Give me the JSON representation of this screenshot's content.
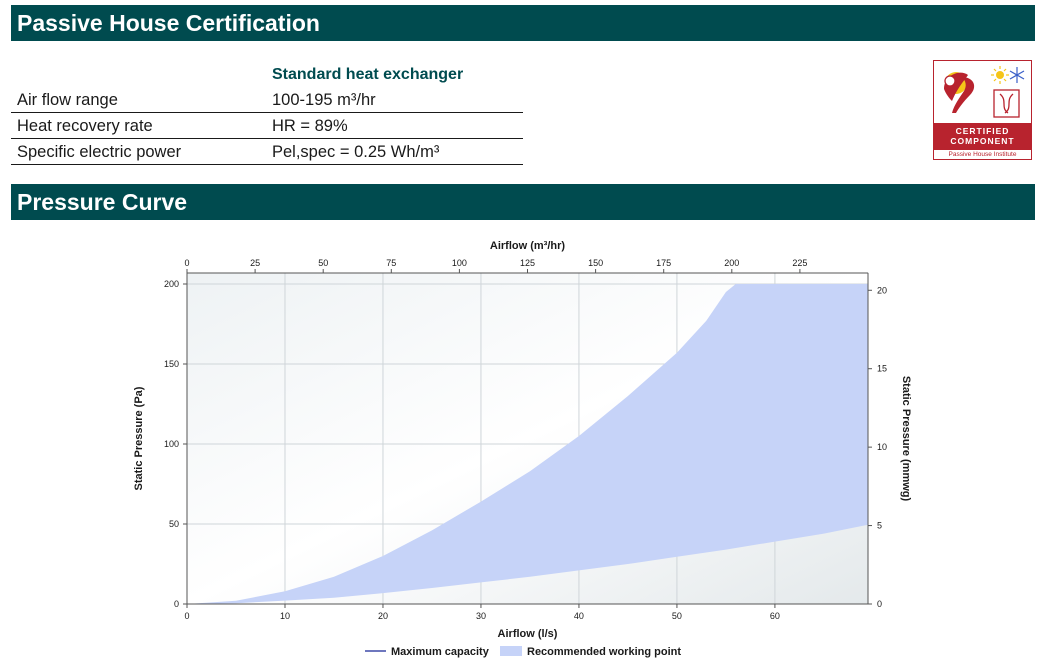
{
  "certification": {
    "title": "Passive House Certification",
    "column_header": "Standard heat exchanger",
    "rows": [
      {
        "label": "Air flow range",
        "value": "100-195 m³/hr"
      },
      {
        "label": "Heat recovery rate",
        "value": "HR = 89%"
      },
      {
        "label": "Specific electric power",
        "value": "Pel,spec = 0.25 Wh/m³"
      }
    ],
    "badge": {
      "line1": "CERTIFIED",
      "line2": "COMPONENT",
      "footer": "Passive House Institute",
      "icons": [
        "passive-house-logo-icon",
        "sun-icon",
        "snowflake-icon",
        "heat-exchanger-icon"
      ],
      "color": "#b8232e"
    }
  },
  "pressure_curve": {
    "title": "Pressure Curve"
  },
  "colors": {
    "header_bar": "#004b4f",
    "accent_text": "#004b4f",
    "area_fill": "#c6d3f8",
    "line": "#3f4aa8"
  },
  "chart_data": {
    "type": "area",
    "xlabel": "Airflow (l/s)",
    "x_ticks": [
      0,
      10,
      20,
      30,
      40,
      50,
      60
    ],
    "xlim": [
      0,
      69.5
    ],
    "x2label": "Airflow (m³/hr)",
    "x2_ticks": [
      0,
      25,
      50,
      75,
      100,
      125,
      150,
      175,
      200,
      225
    ],
    "x2lim": [
      0,
      250
    ],
    "ylabel": "Static Pressure (Pa)",
    "y_ticks": [
      0,
      50,
      100,
      150,
      200
    ],
    "ylim": [
      0,
      200
    ],
    "y2label": "Static Pressure (mmwg)",
    "y2_ticks": [
      0,
      5,
      10,
      15,
      20
    ],
    "y2lim": [
      0,
      20.4
    ],
    "grid": true,
    "legend_position": "bottom-center",
    "legend": [
      {
        "label": "Maximum capacity",
        "kind": "line"
      },
      {
        "label": "Recommended working point",
        "kind": "area"
      }
    ],
    "series": [
      {
        "name": "Maximum capacity",
        "x": [
          0,
          5,
          10,
          15,
          20,
          25,
          30,
          35,
          40,
          45,
          50,
          53,
          55,
          56,
          58,
          60,
          69.5
        ],
        "values": [
          0,
          2,
          8,
          17,
          30,
          46,
          64,
          83,
          105,
          130,
          157,
          177,
          195,
          200,
          200,
          200,
          200
        ]
      },
      {
        "name": "Recommended working point",
        "x": [
          0,
          5,
          10,
          15,
          20,
          25,
          30,
          35,
          40,
          45,
          50,
          55,
          60,
          65,
          69.5
        ],
        "values": [
          0,
          0.5,
          2.1,
          3.9,
          6.8,
          10,
          13.5,
          17,
          21,
          25,
          29.5,
          34,
          39,
          44,
          49.5
        ]
      }
    ]
  }
}
